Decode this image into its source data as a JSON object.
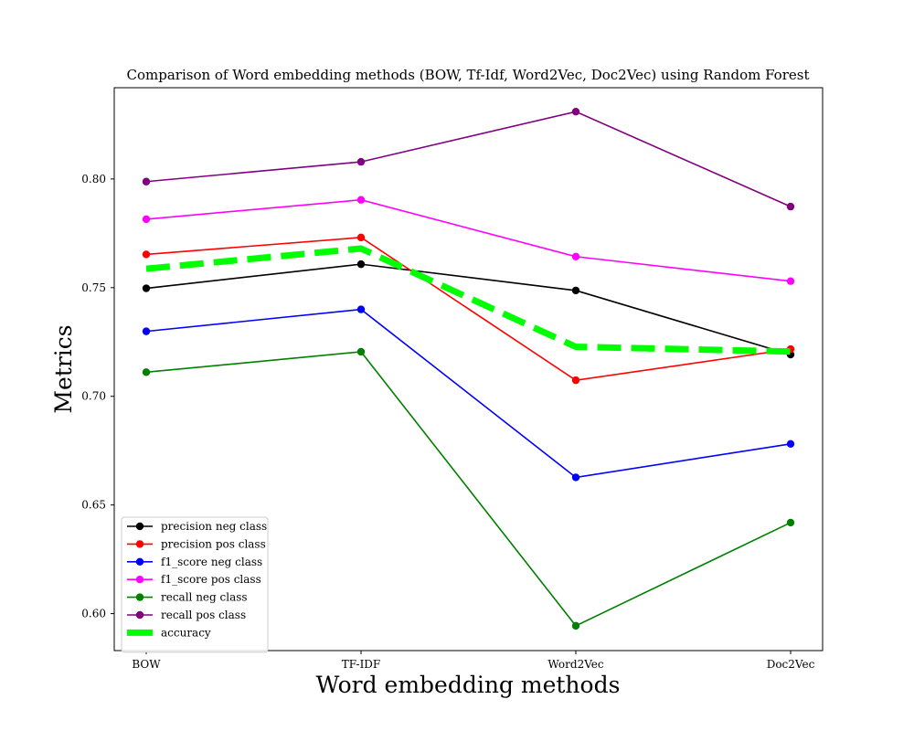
{
  "chart_data": {
    "type": "line",
    "title": "Comparison of Word embedding methods (BOW, Tf-Idf, Word2Vec, Doc2Vec) using Random Forest",
    "xlabel": "Word embedding methods",
    "ylabel": "Metrics",
    "categories": [
      "BOW",
      "TF-IDF",
      "Word2Vec",
      "Doc2Vec"
    ],
    "ylim": [
      0.583,
      0.842
    ],
    "yticks": [
      0.6,
      0.65,
      0.7,
      0.75,
      0.8
    ],
    "ytick_labels": [
      "0.60",
      "0.65",
      "0.70",
      "0.75",
      "0.80"
    ],
    "grid": false,
    "legend_position": "lower-left",
    "series": [
      {
        "name": "precision neg class",
        "color": "#000000",
        "style": "solid-marker",
        "values": [
          0.7497,
          0.7608,
          0.7487,
          0.7192
        ]
      },
      {
        "name": "precision pos class",
        "color": "#ff0000",
        "style": "solid-marker",
        "values": [
          0.7653,
          0.7731,
          0.7074,
          0.7217
        ]
      },
      {
        "name": "f1_score neg class",
        "color": "#0000ff",
        "style": "solid-marker",
        "values": [
          0.7299,
          0.74,
          0.6627,
          0.6781
        ]
      },
      {
        "name": "f1_score pos class",
        "color": "#ff00ff",
        "style": "solid-marker",
        "values": [
          0.7815,
          0.7904,
          0.7643,
          0.753
        ]
      },
      {
        "name": "recall neg class",
        "color": "#008000",
        "style": "solid-marker",
        "values": [
          0.7111,
          0.7205,
          0.5944,
          0.6419
        ]
      },
      {
        "name": "recall pos class",
        "color": "#800080",
        "style": "solid-marker",
        "values": [
          0.7988,
          0.8079,
          0.831,
          0.7873
        ]
      },
      {
        "name": "accuracy",
        "color": "#00ff00",
        "style": "dashed",
        "values": [
          0.7587,
          0.768,
          0.7228,
          0.7206
        ]
      }
    ]
  }
}
